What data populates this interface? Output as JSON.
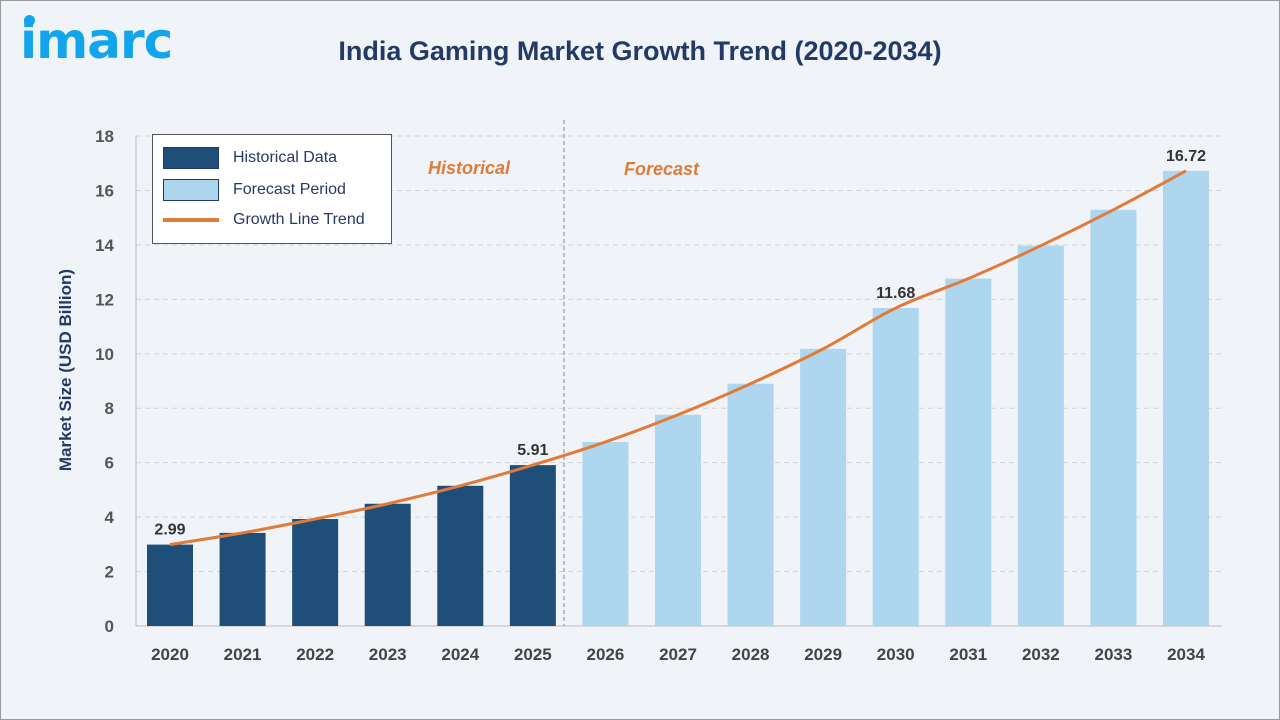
{
  "logo": "imarc",
  "chart_data": {
    "type": "bar",
    "title": "India Gaming Market Growth Trend (2020-2034)",
    "xlabel": "",
    "ylabel": "Market Size (USD Billion)",
    "ylim": [
      0,
      18
    ],
    "yticks": [
      0,
      2,
      4,
      6,
      8,
      10,
      12,
      14,
      16,
      18
    ],
    "grid": true,
    "legend_position": "top-left",
    "categories": [
      "2020",
      "2021",
      "2022",
      "2023",
      "2024",
      "2025",
      "2026",
      "2027",
      "2028",
      "2029",
      "2030",
      "2031",
      "2032",
      "2033",
      "2034"
    ],
    "values": [
      2.99,
      3.42,
      3.93,
      4.49,
      5.15,
      5.91,
      6.76,
      7.76,
      8.9,
      10.18,
      11.68,
      12.76,
      13.97,
      15.29,
      16.72
    ],
    "series_type": [
      "historical",
      "historical",
      "historical",
      "historical",
      "historical",
      "historical",
      "forecast",
      "forecast",
      "forecast",
      "forecast",
      "forecast",
      "forecast",
      "forecast",
      "forecast",
      "forecast"
    ],
    "data_labels": {
      "2020": "2.99",
      "2025": "5.91",
      "2030": "11.68",
      "2034": "16.72"
    },
    "legend": [
      {
        "name": "Historical Data",
        "color": "#1f4e79"
      },
      {
        "name": "Forecast Period",
        "color": "#aed6ef"
      },
      {
        "name": "Growth Line Trend",
        "color": "#e07b39"
      }
    ],
    "annotations": {
      "historical": "Historical",
      "forecast": "Forecast"
    }
  }
}
